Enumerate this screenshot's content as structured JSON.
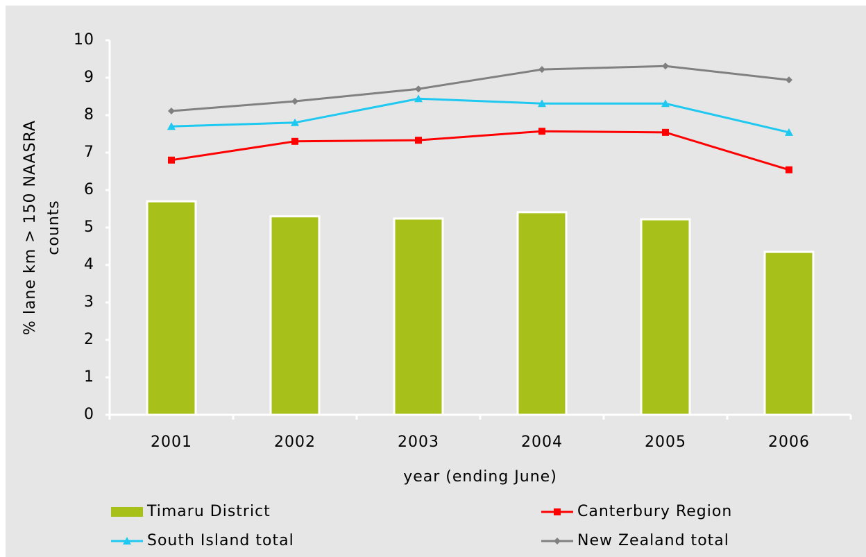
{
  "chart_data": {
    "type": "combo",
    "x_label": "year (ending June)",
    "y_label": [
      "% lane km > 150 NAASRA",
      "counts"
    ],
    "categories": [
      "2001",
      "2002",
      "2003",
      "2004",
      "2005",
      "2006"
    ],
    "ylim": [
      0,
      10
    ],
    "yticks": [
      0,
      1,
      2,
      3,
      4,
      5,
      6,
      7,
      8,
      9,
      10
    ],
    "grid": false,
    "legend": "bottom",
    "series": [
      {
        "name": "Timaru District",
        "type": "bar",
        "color": "#a8c11a",
        "values": [
          5.7,
          5.3,
          5.24,
          5.41,
          5.22,
          4.35
        ]
      },
      {
        "name": "Canterbury Region",
        "type": "line",
        "marker": "square",
        "color": "#ff0000",
        "values": [
          6.8,
          7.3,
          7.33,
          7.57,
          7.54,
          6.54
        ]
      },
      {
        "name": "South Island total",
        "type": "line",
        "marker": "triangle",
        "color": "#1ec8f0",
        "values": [
          7.7,
          7.8,
          8.44,
          8.31,
          8.31,
          7.54
        ]
      },
      {
        "name": "New Zealand total",
        "type": "line",
        "marker": "diamond",
        "color": "#808080",
        "values": [
          8.11,
          8.37,
          8.7,
          9.22,
          9.31,
          8.94
        ]
      }
    ]
  }
}
